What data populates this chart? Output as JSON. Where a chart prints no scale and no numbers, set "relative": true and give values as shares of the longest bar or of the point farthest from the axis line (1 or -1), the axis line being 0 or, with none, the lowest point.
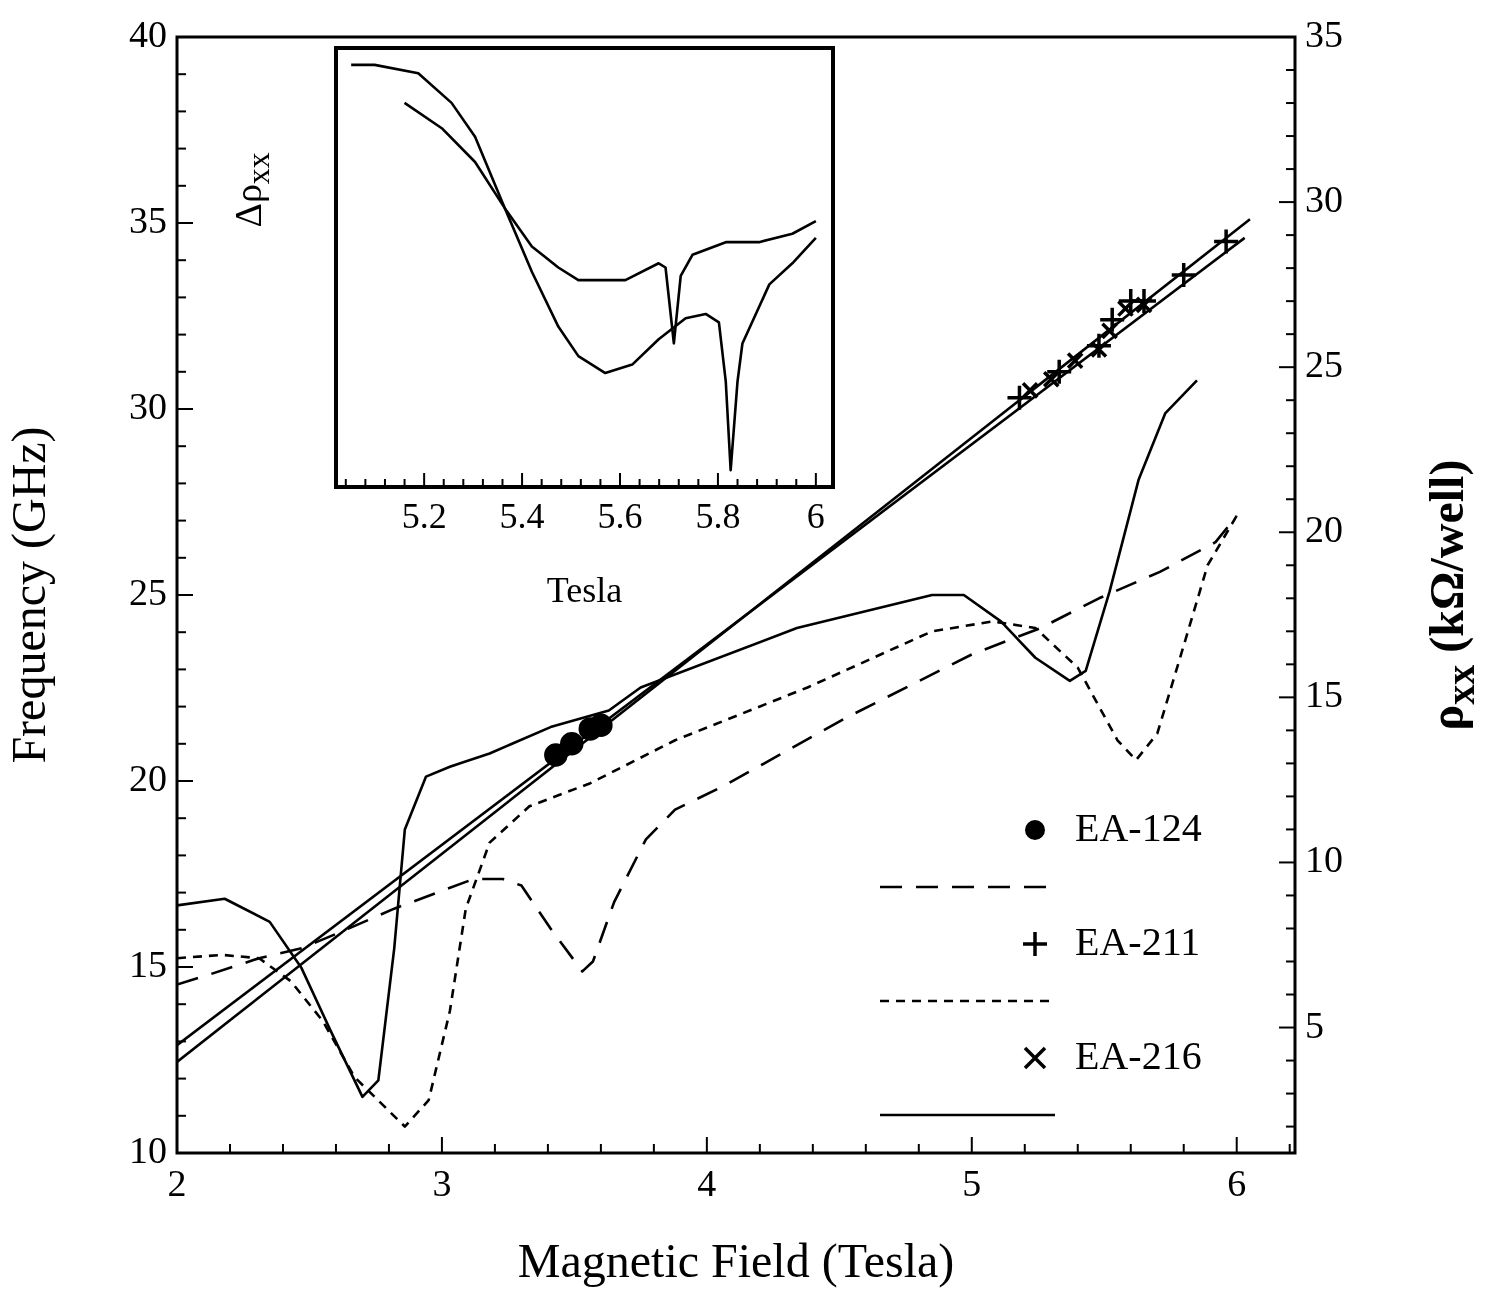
{
  "chart_data": [
    {
      "type": "line",
      "xlabel": "Magnetic Field (Tesla)",
      "ylabel": "Frequency (GHz)",
      "y2label": "ρ$_{xx}$ (kΩ/well)",
      "xlim": [
        2,
        6.22
      ],
      "xticks": [
        2,
        {
          "value": 2.2,
          "label": null
        },
        {
          "value": 2.4,
          "label": null
        },
        {
          "value": 2.6,
          "label": null
        },
        {
          "value": 2.8,
          "label": null
        },
        3,
        {
          "value": 3.2,
          "label": null
        },
        {
          "value": 3.4,
          "label": null
        },
        {
          "value": 3.6,
          "label": null
        },
        {
          "value": 3.8,
          "label": null
        },
        4,
        {
          "value": 4.2,
          "label": null
        },
        {
          "value": 4.4,
          "label": null
        },
        {
          "value": 4.6,
          "label": null
        },
        {
          "value": 4.8,
          "label": null
        },
        5,
        {
          "value": 5.2,
          "label": null
        },
        {
          "value": 5.4,
          "label": null
        },
        {
          "value": 5.6,
          "label": null
        },
        {
          "value": 5.8,
          "label": null
        },
        6,
        {
          "value": 6.2,
          "label": null
        }
      ],
      "ylim": [
        10,
        40
      ],
      "yticks": [
        10,
        {
          "value": 11,
          "label": null
        },
        {
          "value": 12,
          "label": null
        },
        {
          "value": 13,
          "label": null
        },
        {
          "value": 14,
          "label": null
        },
        15,
        {
          "value": 16,
          "label": null
        },
        {
          "value": 17,
          "label": null
        },
        {
          "value": 18,
          "label": null
        },
        {
          "value": 19,
          "label": null
        },
        20,
        {
          "value": 21,
          "label": null
        },
        {
          "value": 22,
          "label": null
        },
        {
          "value": 23,
          "label": null
        },
        {
          "value": 24,
          "label": null
        },
        25,
        {
          "value": 26,
          "label": null
        },
        {
          "value": 27,
          "label": null
        },
        {
          "value": 28,
          "label": null
        },
        {
          "value": 29,
          "label": null
        },
        30,
        {
          "value": 31,
          "label": null
        },
        {
          "value": 32,
          "label": null
        },
        {
          "value": 33,
          "label": null
        },
        {
          "value": 34,
          "label": null
        },
        35,
        {
          "value": 36,
          "label": null
        },
        {
          "value": 37,
          "label": null
        },
        {
          "value": 38,
          "label": null
        },
        {
          "value": 39,
          "label": null
        },
        40
      ],
      "y2lim": [
        1.2,
        35
      ],
      "y2ticks": [
        {
          "value": 2,
          "label": null
        },
        {
          "value": 3,
          "label": null
        },
        {
          "value": 4,
          "label": null
        },
        5,
        {
          "value": 6,
          "label": null
        },
        {
          "value": 7,
          "label": null
        },
        {
          "value": 8,
          "label": null
        },
        {
          "value": 9,
          "label": null
        },
        10,
        {
          "value": 11,
          "label": null
        },
        {
          "value": 12,
          "label": null
        },
        {
          "value": 13,
          "label": null
        },
        {
          "value": 14,
          "label": null
        },
        15,
        {
          "value": 16,
          "label": null
        },
        {
          "value": 17,
          "label": null
        },
        {
          "value": 18,
          "label": null
        },
        {
          "value": 19,
          "label": null
        },
        20,
        {
          "value": 21,
          "label": null
        },
        {
          "value": 22,
          "label": null
        },
        {
          "value": 23,
          "label": null
        },
        {
          "value": 24,
          "label": null
        },
        25,
        {
          "value": 26,
          "label": null
        },
        {
          "value": 27,
          "label": null
        },
        {
          "value": 28,
          "label": null
        },
        {
          "value": 29,
          "label": null
        },
        30,
        {
          "value": 31,
          "label": null
        },
        {
          "value": 32,
          "label": null
        },
        {
          "value": 33,
          "label": null
        },
        {
          "value": 34,
          "label": null
        },
        35
      ],
      "legend": "bottom right",
      "series": [
        {
          "name": "EA-124",
          "type": "scatter",
          "marker": "circle",
          "color": "#000000",
          "x": [
            3.43,
            3.49,
            3.56,
            3.6
          ],
          "values": [
            20.7,
            21.0,
            21.4,
            21.5
          ]
        },
        {
          "axis": "y2",
          "line_style": "dashed",
          "marker": "none",
          "color": "#000000",
          "x": [
            2.0,
            2.12,
            2.31,
            2.47,
            2.62,
            2.82,
            3.12,
            3.23,
            3.3,
            3.41,
            3.53,
            3.57,
            3.65,
            3.77,
            3.88,
            4.06,
            4.53,
            5.0,
            5.26,
            5.48,
            5.71,
            5.92,
            6.0
          ],
          "values": [
            6.3,
            6.6,
            7.1,
            7.4,
            7.9,
            8.6,
            9.5,
            9.5,
            9.3,
            8.0,
            6.7,
            7.0,
            8.8,
            10.7,
            11.6,
            12.3,
            14.4,
            16.3,
            17.1,
            18.0,
            18.8,
            19.7,
            20.5
          ]
        },
        {
          "name": "EA-211",
          "type": "scatter",
          "marker": "cross",
          "color": "#000000",
          "x": [
            5.18,
            5.33,
            5.48,
            5.53,
            5.6,
            5.65,
            5.8,
            5.96
          ],
          "values": [
            30.3,
            31.0,
            31.7,
            32.4,
            32.9,
            32.9,
            33.6,
            34.5
          ]
        },
        {
          "axis": "y2",
          "line_style": "dotted",
          "marker": "none",
          "color": "#000000",
          "x": [
            2.0,
            2.17,
            2.31,
            2.43,
            2.55,
            2.67,
            2.86,
            2.95,
            3.03,
            3.09,
            3.18,
            3.33,
            3.56,
            3.88,
            4.38,
            4.85,
            5.08,
            5.24,
            5.4,
            5.55,
            5.62,
            5.7,
            5.79,
            5.89,
            6.0
          ],
          "values": [
            7.1,
            7.2,
            7.1,
            6.4,
            5.2,
            3.5,
            2.0,
            2.8,
            5.5,
            8.6,
            10.6,
            11.7,
            12.4,
            13.7,
            15.3,
            17.0,
            17.3,
            17.1,
            15.9,
            13.7,
            13.1,
            13.9,
            16.3,
            19.0,
            20.5
          ]
        },
        {
          "name": "EA-216",
          "type": "scatter",
          "marker": "x",
          "color": "#000000",
          "x": [
            5.22,
            5.3,
            5.39,
            5.48,
            5.52,
            5.58,
            5.65
          ],
          "values": [
            30.5,
            30.8,
            31.3,
            31.6,
            32.1,
            32.7,
            32.8
          ]
        },
        {
          "axis": "y2",
          "line_style": "solid",
          "marker": "none",
          "color": "#000000",
          "x": [
            2.0,
            2.18,
            2.35,
            2.47,
            2.58,
            2.7,
            2.76,
            2.82,
            2.86,
            2.94,
            3.03,
            3.18,
            3.41,
            3.63,
            3.75,
            4.34,
            4.85,
            4.97,
            5.11,
            5.24,
            5.37,
            5.43,
            5.52,
            5.63,
            5.73,
            5.85
          ],
          "values": [
            8.7,
            8.9,
            8.2,
            6.8,
            4.9,
            2.9,
            3.4,
            7.4,
            11.0,
            12.6,
            12.9,
            13.3,
            14.1,
            14.6,
            15.3,
            17.1,
            18.1,
            18.1,
            17.3,
            16.2,
            15.5,
            15.8,
            18.2,
            21.6,
            23.6,
            24.6
          ]
        },
        {
          "line_style": "solid",
          "marker": "none",
          "color": "#000000",
          "x": [
            2,
            6.05
          ],
          "values": [
            12.45,
            35.1
          ]
        },
        {
          "line_style": "solid",
          "marker": "none",
          "color": "#000000",
          "x": [
            2,
            6.03
          ],
          "values": [
            12.9,
            34.6
          ]
        }
      ]
    },
    {
      "type": "line",
      "relative": true,
      "tick_labels": "x",
      "xlabel": "Tesla",
      "ylabel": "Δρ$_{xx}$",
      "xlim": [
        5.02,
        6.035
      ],
      "xticks": [
        {
          "value": 5.04,
          "label": null
        },
        {
          "value": 5.08,
          "label": null
        },
        {
          "value": 5.12,
          "label": null
        },
        {
          "value": 5.16,
          "label": null
        },
        5.2,
        {
          "value": 5.24,
          "label": null
        },
        {
          "value": 5.28,
          "label": null
        },
        {
          "value": 5.32,
          "label": null
        },
        {
          "value": 5.36,
          "label": null
        },
        5.4,
        {
          "value": 5.44,
          "label": null
        },
        {
          "value": 5.48,
          "label": null
        },
        {
          "value": 5.52,
          "label": null
        },
        {
          "value": 5.56,
          "label": null
        },
        5.6,
        {
          "value": 5.64,
          "label": null
        },
        {
          "value": 5.68,
          "label": null
        },
        {
          "value": 5.72,
          "label": null
        },
        {
          "value": 5.76,
          "label": null
        },
        5.8,
        {
          "value": 5.84,
          "label": null
        },
        {
          "value": 5.88,
          "label": null
        },
        {
          "value": 5.92,
          "label": null
        },
        {
          "value": 5.96,
          "label": null
        },
        6
      ],
      "series": [
        {
          "color": "#000000",
          "x": [
            5.051,
            5.099,
            5.188,
            5.256,
            5.304,
            5.365,
            5.42,
            5.474,
            5.515,
            5.57,
            5.625,
            5.679,
            5.734,
            5.775,
            5.802,
            5.816,
            5.826,
            5.84,
            5.85,
            5.905,
            5.952,
            6.0
          ],
          "values": [
            1.0,
            1.0,
            0.98,
            0.91,
            0.83,
            0.66,
            0.51,
            0.38,
            0.31,
            0.27,
            0.29,
            0.35,
            0.4,
            0.41,
            0.39,
            0.25,
            0.04,
            0.25,
            0.34,
            0.48,
            0.53,
            0.59
          ]
        },
        {
          "color": "#000000",
          "x": [
            5.16,
            5.236,
            5.304,
            5.365,
            5.42,
            5.474,
            5.515,
            5.556,
            5.611,
            5.679,
            5.693,
            5.71,
            5.724,
            5.748,
            5.816,
            5.884,
            5.952,
            6.0
          ],
          "values": [
            0.91,
            0.85,
            0.77,
            0.66,
            0.57,
            0.52,
            0.49,
            0.49,
            0.49,
            0.53,
            0.52,
            0.34,
            0.5,
            0.55,
            0.58,
            0.58,
            0.6,
            0.63
          ]
        }
      ]
    }
  ]
}
